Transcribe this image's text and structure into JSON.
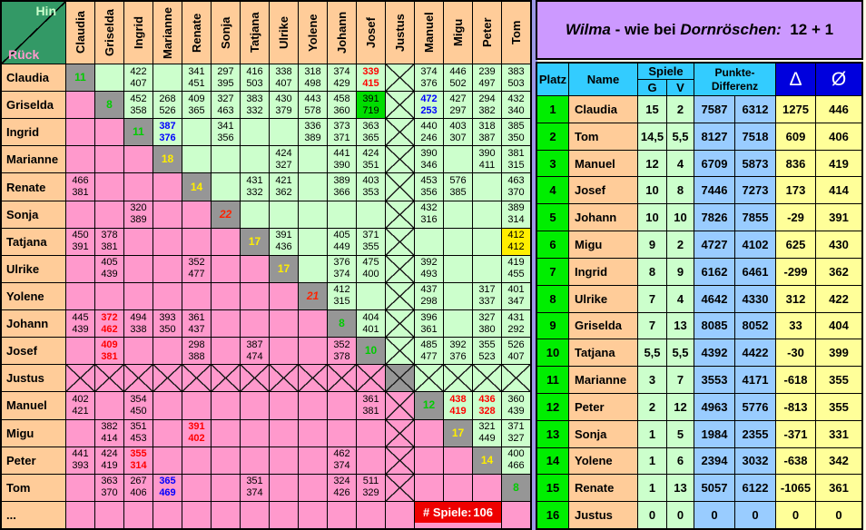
{
  "left_table": {
    "corner": {
      "hin": "Hin",
      "rueck": "Rück"
    },
    "columns": [
      "Claudia",
      "Griselda",
      "Ingrid",
      "Marianne",
      "Renate",
      "Sonja",
      "Tatjana",
      "Ulrike",
      "Yolene",
      "Johann",
      "Josef",
      "Justus",
      "Manuel",
      "Migu",
      "Peter",
      "Tom"
    ],
    "rows": [
      {
        "name": "Claudia",
        "cells": [
          "d:11:dg",
          "h",
          "h:422 407",
          "h",
          "h:341 451",
          "h:297 395",
          "h:416 503",
          "h:338 407",
          "h:318 498",
          "h:374 429",
          "h:339 415:red",
          "hx",
          "h:374 376",
          "h:446 502",
          "h:239 497",
          "h:383 503"
        ]
      },
      {
        "name": "Griselda",
        "cells": [
          "r",
          "d:8:dg",
          "h:452 358",
          "h:268 526",
          "h:409 365",
          "h:327 463",
          "h:383 332",
          "h:430 379",
          "h:443 578",
          "h:458 360",
          "g:391 719",
          "hx",
          "h:472 253:blue",
          "h:427 297",
          "h:294 382",
          "h:432 340"
        ]
      },
      {
        "name": "Ingrid",
        "cells": [
          "r",
          "r",
          "d:11:dg",
          "h:387 376:blue",
          "h",
          "h:341 356",
          "h",
          "h",
          "h:336 389",
          "h:373 371",
          "h:363 365",
          "hx",
          "h:440 246",
          "h:403 307",
          "h:318 387",
          "h:385 350"
        ]
      },
      {
        "name": "Marianne",
        "cells": [
          "r",
          "r",
          "r",
          "d:18:dy",
          "h",
          "h",
          "h",
          "h:424 327",
          "h",
          "h:441 390",
          "h:424 351",
          "hx",
          "h:390 346",
          "h",
          "h:390 411",
          "h:381 315"
        ]
      },
      {
        "name": "Renate",
        "cells": [
          "r:466 381",
          "r",
          "r",
          "r",
          "d:14:dy",
          "h",
          "h:431 332",
          "h:421 362",
          "h",
          "h:389 366",
          "h:403 353",
          "hx",
          "h:453 356",
          "h:576 385",
          "h",
          "h:463 370"
        ]
      },
      {
        "name": "Sonja",
        "cells": [
          "r",
          "r",
          "r:320 389",
          "r",
          "r",
          "d:22:dr",
          "h",
          "h",
          "h",
          "h",
          "h",
          "hx",
          "h:432 316",
          "h",
          "h",
          "h:389 314"
        ]
      },
      {
        "name": "Tatjana",
        "cells": [
          "r:450 391",
          "r:378 381",
          "r",
          "r",
          "r",
          "r",
          "d:17:dy",
          "h:391 436",
          "h",
          "h:405 449",
          "h:371 355",
          "hx",
          "h",
          "h",
          "h",
          "y:412 412"
        ]
      },
      {
        "name": "Ulrike",
        "cells": [
          "r",
          "r:405 439",
          "r",
          "r",
          "r:352 477",
          "r",
          "r",
          "d:17:dy",
          "h",
          "h:376 374",
          "h:475 400",
          "hx",
          "h:392 493",
          "h",
          "h",
          "h:419 455"
        ]
      },
      {
        "name": "Yolene",
        "cells": [
          "r",
          "r",
          "r",
          "r",
          "r",
          "r",
          "r",
          "r",
          "d:21:dr",
          "h:412 315",
          "h",
          "hx",
          "h:437 298",
          "h",
          "h:317 337",
          "h:401 347"
        ]
      },
      {
        "name": "Johann",
        "cells": [
          "r:445 439",
          "r:372 462:red",
          "r:494 338",
          "r:393 350",
          "r:361 437",
          "r",
          "r",
          "r",
          "r",
          "d:8:dg",
          "h:404 401",
          "hx",
          "h:396 361",
          "h",
          "h:327 380",
          "h:431 292"
        ]
      },
      {
        "name": "Josef",
        "cells": [
          "r",
          "r:409 381:red",
          "r",
          "r",
          "r:298 388",
          "r",
          "r:387 474",
          "r",
          "r",
          "r:352 378",
          "d:10:dg",
          "hx",
          "h:485 477",
          "h:392 376",
          "h:355 523",
          "h:526 407"
        ]
      },
      {
        "name": "Justus",
        "cells": [
          "rx",
          "rx",
          "rx",
          "rx",
          "rx",
          "rx",
          "rx",
          "rx",
          "rx",
          "rx",
          "rx",
          "dx",
          "hx",
          "hx",
          "hx",
          "hx"
        ]
      },
      {
        "name": "Manuel",
        "cells": [
          "r:402 421",
          "r",
          "r:354 450",
          "r",
          "r",
          "r",
          "r",
          "r",
          "r",
          "r",
          "r:361 381",
          "rx",
          "d:12:dg",
          "h:438 419:red",
          "h:436 328:red",
          "h:360 439"
        ]
      },
      {
        "name": "Migu",
        "cells": [
          "r",
          "r:382 414",
          "r:351 453",
          "r",
          "r:391 402:red",
          "r",
          "r",
          "r",
          "r",
          "r",
          "r",
          "rx",
          "r",
          "d:17:dy",
          "h:321 449",
          "h:371 327"
        ]
      },
      {
        "name": "Peter",
        "cells": [
          "r:441 393",
          "r:424 419",
          "r:355 314:red",
          "r",
          "r",
          "r",
          "r",
          "r",
          "r",
          "r:462 374",
          "r",
          "rx",
          "r",
          "r",
          "d:14:dy",
          "h:400 466"
        ]
      },
      {
        "name": "Tom",
        "cells": [
          "r",
          "r:363 370",
          "r:267 406",
          "r:365 469:blue",
          "r",
          "r",
          "r:351 374",
          "r",
          "r",
          "r:324 426",
          "r:511 329",
          "rx",
          "r",
          "r",
          "r",
          "d:8:dg"
        ]
      },
      {
        "name": "...",
        "cells": [
          "r",
          "r",
          "r",
          "r",
          "r",
          "r",
          "r",
          "r",
          "r",
          "r",
          "r",
          "r",
          "spiele",
          "",
          "",
          "r"
        ]
      }
    ],
    "footer": {
      "label": "# Spiele:",
      "value": "106"
    }
  },
  "right_panel": {
    "title_parts": [
      {
        "t": "Wilma",
        "i": true
      },
      {
        "t": " - wie bei ",
        "i": false
      },
      {
        "t": "Dornröschen:",
        "i": true
      },
      {
        "t": "  12 + 1",
        "i": false
      }
    ],
    "header": {
      "platz": "Platz",
      "name": "Name",
      "spiele": "Spiele",
      "g": "G",
      "v": "V",
      "punkte_line1": "Punkte-",
      "punkte_line2": "Differenz",
      "delta": "Δ",
      "avg": "Ø"
    },
    "rows": [
      {
        "platz": "1",
        "name": "Claudia",
        "g": "15",
        "v": "2",
        "p1": "7587",
        "p2": "6312",
        "delta": "1275",
        "avg": "446",
        "crossed": false
      },
      {
        "platz": "2",
        "name": "Tom",
        "g": "14,5",
        "v": "5,5",
        "p1": "8127",
        "p2": "7518",
        "delta": "609",
        "avg": "406",
        "crossed": false
      },
      {
        "platz": "3",
        "name": "Manuel",
        "g": "12",
        "v": "4",
        "p1": "6709",
        "p2": "5873",
        "delta": "836",
        "avg": "419",
        "crossed": false
      },
      {
        "platz": "4",
        "name": "Josef",
        "g": "10",
        "v": "8",
        "p1": "7446",
        "p2": "7273",
        "delta": "173",
        "avg": "414",
        "crossed": false
      },
      {
        "platz": "5",
        "name": "Johann",
        "g": "10",
        "v": "10",
        "p1": "7826",
        "p2": "7855",
        "delta": "-29",
        "avg": "391",
        "crossed": false
      },
      {
        "platz": "6",
        "name": "Migu",
        "g": "9",
        "v": "2",
        "p1": "4727",
        "p2": "4102",
        "delta": "625",
        "avg": "430",
        "crossed": false
      },
      {
        "platz": "7",
        "name": "Ingrid",
        "g": "8",
        "v": "9",
        "p1": "6162",
        "p2": "6461",
        "delta": "-299",
        "avg": "362",
        "crossed": false
      },
      {
        "platz": "8",
        "name": "Ulrike",
        "g": "7",
        "v": "4",
        "p1": "4642",
        "p2": "4330",
        "delta": "312",
        "avg": "422",
        "crossed": false
      },
      {
        "platz": "9",
        "name": "Griselda",
        "g": "7",
        "v": "13",
        "p1": "8085",
        "p2": "8052",
        "delta": "33",
        "avg": "404",
        "crossed": false
      },
      {
        "platz": "10",
        "name": "Tatjana",
        "g": "5,5",
        "v": "5,5",
        "p1": "4392",
        "p2": "4422",
        "delta": "-30",
        "avg": "399",
        "crossed": false
      },
      {
        "platz": "11",
        "name": "Marianne",
        "g": "3",
        "v": "7",
        "p1": "3553",
        "p2": "4171",
        "delta": "-618",
        "avg": "355",
        "crossed": false
      },
      {
        "platz": "12",
        "name": "Peter",
        "g": "2",
        "v": "12",
        "p1": "4963",
        "p2": "5776",
        "delta": "-813",
        "avg": "355",
        "crossed": false
      },
      {
        "platz": "13",
        "name": "Sonja",
        "g": "1",
        "v": "5",
        "p1": "1984",
        "p2": "2355",
        "delta": "-371",
        "avg": "331",
        "crossed": false
      },
      {
        "platz": "14",
        "name": "Yolene",
        "g": "1",
        "v": "6",
        "p1": "2394",
        "p2": "3032",
        "delta": "-638",
        "avg": "342",
        "crossed": false
      },
      {
        "platz": "15",
        "name": "Renate",
        "g": "1",
        "v": "13",
        "p1": "5057",
        "p2": "6122",
        "delta": "-1065",
        "avg": "361",
        "crossed": false
      },
      {
        "platz": "16",
        "name": "Justus",
        "g": "0",
        "v": "0",
        "p1": "0",
        "p2": "0",
        "delta": "0",
        "avg": "0",
        "crossed": true
      }
    ]
  },
  "colors": {
    "hin_bg": "#CCFFCC",
    "rueck_bg": "#FF99CC",
    "diag_bg": "#969696",
    "row_header_bg": "#FFCC99",
    "corner_bg": "#339966",
    "hin_text": "#CCFFCC",
    "rueck_text": "#FF99CC",
    "highlight_green_bg": "#00DD00",
    "highlight_yellow_bg": "#FFEE00",
    "score_red": "#FF0000",
    "score_blue": "#0000FF",
    "diag_green": "#00CC00",
    "diag_yellow": "#FFEE00",
    "diag_red": "#FF2200",
    "footer_red_bg": "#EE0000",
    "title_bg": "#CC99FF",
    "head_cyan": "#33CCFF",
    "head_dark_blue": "#0000DD",
    "rank_green": "#00EE00",
    "name_peach": "#FFCC99",
    "gv_green": "#CCFFCC",
    "points_blue": "#99CCFF",
    "delta_yellow": "#FFFF99",
    "divider_purple": "#9D99E6"
  }
}
